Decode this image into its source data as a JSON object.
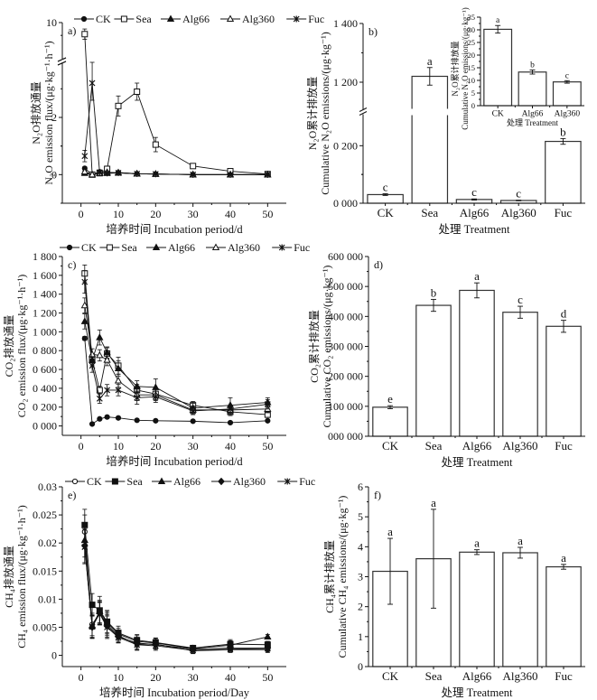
{
  "legend_series": [
    "CK",
    "Sea",
    "Alg66",
    "Alg360",
    "Fuc"
  ],
  "chart_data": [
    {
      "id": "a",
      "panel_label": "a)",
      "type": "line",
      "title": "",
      "xlabel": "培养时间 Incubation period/d",
      "ylabel_cn": "N₂O排放通量",
      "ylabel_en": "N₂O emission flux/(μg·kg⁻¹·h⁻¹)",
      "xlim": [
        -5,
        55
      ],
      "xticks": [
        0,
        10,
        20,
        30,
        40,
        50
      ],
      "ylim_lower": [
        -1,
        3.8
      ],
      "ylim_upper": [
        3.8,
        10
      ],
      "yticks": [
        0,
        2,
        10
      ],
      "axis_break": true,
      "legend_position": "top",
      "x": [
        1,
        3,
        5,
        7,
        10,
        15,
        20,
        30,
        40,
        50
      ],
      "series": [
        {
          "name": "CK",
          "marker": "filled-circle",
          "values": [
            0.22,
            0.0,
            0.1,
            0.05,
            0.07,
            0.03,
            0.02,
            0.0,
            0.0,
            0.0
          ],
          "errors": [
            0.05,
            0.02,
            0.03,
            0.02,
            0.02,
            0.01,
            0.01,
            0.01,
            0.01,
            0.01
          ]
        },
        {
          "name": "Sea",
          "marker": "open-square",
          "values": [
            8.2,
            0.0,
            0.05,
            0.2,
            2.4,
            2.9,
            1.05,
            0.3,
            0.12,
            0.02
          ],
          "errors": [
            0.8,
            0.03,
            0.03,
            0.1,
            0.35,
            0.3,
            0.25,
            0.05,
            0.03,
            0.01
          ]
        },
        {
          "name": "Alg66",
          "marker": "filled-triangle",
          "values": [
            0.05,
            0.0,
            0.05,
            0.05,
            0.06,
            0.03,
            0.02,
            0.0,
            0.0,
            0.0
          ],
          "errors": [
            0.02,
            0.01,
            0.02,
            0.02,
            0.02,
            0.01,
            0.01,
            0.01,
            0.01,
            0.01
          ]
        },
        {
          "name": "Alg360",
          "marker": "open-triangle",
          "values": [
            0.1,
            0.0,
            0.05,
            0.08,
            0.07,
            0.03,
            0.02,
            0.0,
            0.0,
            0.0
          ],
          "errors": [
            0.03,
            0.01,
            0.02,
            0.02,
            0.02,
            0.01,
            0.01,
            0.01,
            0.01,
            0.01
          ]
        },
        {
          "name": "Fuc",
          "marker": "star",
          "values": [
            0.65,
            3.2,
            0.08,
            0.05,
            0.06,
            0.03,
            0.02,
            0.0,
            0.0,
            0.0
          ],
          "errors": [
            0.2,
            0.6,
            0.03,
            0.02,
            0.02,
            0.01,
            0.01,
            0.01,
            0.01,
            0.01
          ]
        }
      ]
    },
    {
      "id": "b",
      "panel_label": "b)",
      "type": "bar",
      "xlabel": "处理 Treatment",
      "ylabel_cn": "N₂O累计排放量",
      "ylabel_en": "Cumulative N₂O emissions/(μg·kg⁻¹)",
      "categories": [
        "CK",
        "Sea",
        "Alg66",
        "Alg360",
        "Fuc"
      ],
      "values": [
        30,
        1220,
        13,
        9.5,
        215
      ],
      "errors": [
        3,
        30,
        2,
        1,
        10
      ],
      "letters": [
        "c",
        "a",
        "c",
        "c",
        "b"
      ],
      "axis_break": true,
      "ylim_lower": [
        0,
        300
      ],
      "ylim_upper": [
        1100,
        1400
      ],
      "ytick_labels": [
        "0 000",
        "0 200",
        "1 200",
        "1 400"
      ],
      "yticks": [
        0,
        200,
        1200,
        1400
      ],
      "inset": {
        "type": "bar",
        "xlabel": "处理 Treatment",
        "ylabel_cn": "N₂O累计排放量",
        "ylabel_en": "Cumulative N₂O emissions/(μg·kg⁻¹)",
        "categories": [
          "CK",
          "Alg66",
          "Alg360"
        ],
        "values": [
          30.2,
          13.3,
          9.4
        ],
        "errors": [
          1.5,
          0.8,
          0.5
        ],
        "letters": [
          "a",
          "b",
          "c"
        ],
        "ylim": [
          0,
          35
        ],
        "yticks": [
          0,
          5,
          10,
          15,
          20,
          25,
          30,
          35
        ]
      }
    },
    {
      "id": "c",
      "panel_label": "c)",
      "type": "line",
      "xlabel": "培养时间 Incubation period/d",
      "ylabel_cn": "CO₂排放通量",
      "ylabel_en": "CO₂ emission flux/(μg·kg⁻¹·h⁻¹)",
      "xlim": [
        -5,
        55
      ],
      "xticks": [
        0,
        10,
        20,
        30,
        40,
        50
      ],
      "ylim": [
        -100,
        1800
      ],
      "yticks": [
        0,
        200,
        400,
        600,
        800,
        1000,
        1200,
        1400,
        1600,
        1800
      ],
      "ytick_labels": [
        "0 000",
        "0 200",
        "0 400",
        "0 600",
        "0 800",
        "1 000",
        "1 200",
        "1 400",
        "1 600",
        "1 800"
      ],
      "legend_position": "top",
      "x": [
        1,
        3,
        5,
        7,
        10,
        15,
        20,
        30,
        40,
        50
      ],
      "series": [
        {
          "name": "CK",
          "marker": "filled-circle",
          "values": [
            930,
            20,
            75,
            95,
            85,
            60,
            55,
            50,
            35,
            55
          ],
          "errors": [
            20,
            5,
            10,
            10,
            15,
            10,
            8,
            8,
            8,
            8
          ]
        },
        {
          "name": "Sea",
          "marker": "open-square",
          "values": [
            1620,
            700,
            380,
            770,
            640,
            380,
            340,
            220,
            150,
            120
          ],
          "errors": [
            90,
            60,
            40,
            60,
            90,
            60,
            60,
            40,
            40,
            30
          ]
        },
        {
          "name": "Alg66",
          "marker": "filled-triangle",
          "values": [
            1110,
            700,
            940,
            780,
            610,
            420,
            410,
            190,
            220,
            250
          ],
          "errors": [
            80,
            60,
            80,
            60,
            80,
            60,
            90,
            50,
            80,
            50
          ]
        },
        {
          "name": "Alg360",
          "marker": "open-triangle",
          "values": [
            1280,
            760,
            750,
            700,
            480,
            330,
            330,
            170,
            170,
            180
          ],
          "errors": [
            80,
            60,
            60,
            60,
            70,
            60,
            60,
            40,
            40,
            40
          ]
        },
        {
          "name": "Fuc",
          "marker": "star",
          "values": [
            1530,
            640,
            290,
            380,
            380,
            300,
            310,
            160,
            180,
            230
          ],
          "errors": [
            120,
            70,
            50,
            60,
            60,
            70,
            60,
            40,
            40,
            50
          ]
        }
      ]
    },
    {
      "id": "d",
      "panel_label": "d)",
      "type": "bar",
      "xlabel": "处理 Treatment",
      "ylabel_cn": "CO₂累计排放量",
      "ylabel_en": "Cumulative CO₂ emissions/(μg·kg⁻¹)",
      "categories": [
        "CK",
        "Sea",
        "Alg66",
        "Alg360",
        "Fuc"
      ],
      "values": [
        97000,
        437000,
        487000,
        414000,
        367000
      ],
      "errors": [
        5000,
        20000,
        25000,
        20000,
        20000
      ],
      "letters": [
        "e",
        "b",
        "a",
        "c",
        "d"
      ],
      "ylim": [
        0,
        600000
      ],
      "yticks": [
        0,
        100000,
        200000,
        300000,
        400000,
        500000,
        600000
      ],
      "ytick_labels": [
        "000 000",
        "100 000",
        "200 000",
        "300 000",
        "400 000",
        "500 000",
        "600 000"
      ]
    },
    {
      "id": "e",
      "panel_label": "e)",
      "type": "line",
      "xlabel": "培养时间 Incubation period/Day",
      "ylabel_cn": "CH₄排放通量",
      "ylabel_en": "CH₄ emission flux/(μg·kg⁻¹·h⁻¹)",
      "xlim": [
        -5,
        55
      ],
      "xticks": [
        0,
        10,
        20,
        30,
        40,
        50
      ],
      "ylim": [
        -0.002,
        0.03
      ],
      "yticks": [
        0,
        0.005,
        0.01,
        0.015,
        0.02,
        0.025,
        0.03
      ],
      "ytick_labels": [
        "0",
        "0.005",
        "0.01",
        "0.015",
        "0.02",
        "0.025",
        "0.03"
      ],
      "legend_position": "top",
      "x": [
        1,
        3,
        5,
        7,
        10,
        15,
        20,
        30,
        40,
        50
      ],
      "series": [
        {
          "name": "CK",
          "marker": "open-circle",
          "values": [
            0.022,
            0.0055,
            0.0075,
            0.0055,
            0.0035,
            0.002,
            0.002,
            0.0008,
            0.001,
            0.001
          ],
          "errors": [
            0.003,
            0.002,
            0.002,
            0.002,
            0.001,
            0.001,
            0.0008,
            0.0005,
            0.0005,
            0.0005
          ]
        },
        {
          "name": "Sea",
          "marker": "filled-square",
          "values": [
            0.0232,
            0.009,
            0.008,
            0.006,
            0.004,
            0.0027,
            0.0023,
            0.0013,
            0.002,
            0.0019
          ],
          "errors": [
            0.0028,
            0.002,
            0.0025,
            0.002,
            0.0012,
            0.001,
            0.0008,
            0.0005,
            0.0008,
            0.0006
          ]
        },
        {
          "name": "Alg66",
          "marker": "filled-triangle",
          "values": [
            0.0205,
            0.0052,
            0.0078,
            0.0058,
            0.0038,
            0.0025,
            0.0022,
            0.0012,
            0.0018,
            0.0033
          ],
          "errors": [
            0.003,
            0.002,
            0.002,
            0.002,
            0.001,
            0.001,
            0.0008,
            0.0005,
            0.0008,
            0.0004
          ]
        },
        {
          "name": "Alg360",
          "marker": "filled-diamond",
          "values": [
            0.0195,
            0.005,
            0.0076,
            0.0052,
            0.0033,
            0.0022,
            0.0019,
            0.0011,
            0.0013,
            0.0013
          ],
          "errors": [
            0.003,
            0.002,
            0.002,
            0.002,
            0.001,
            0.001,
            0.0008,
            0.0005,
            0.0005,
            0.0005
          ]
        },
        {
          "name": "Fuc",
          "marker": "star",
          "values": [
            0.0193,
            0.0051,
            0.0074,
            0.005,
            0.0032,
            0.0019,
            0.0017,
            0.0009,
            0.0011,
            0.0012
          ],
          "errors": [
            0.003,
            0.002,
            0.002,
            0.002,
            0.001,
            0.001,
            0.0008,
            0.0005,
            0.0005,
            0.0005
          ]
        }
      ]
    },
    {
      "id": "f",
      "panel_label": "f)",
      "type": "bar",
      "xlabel": "处理 Treatment",
      "ylabel_cn": "CH₄累计排放量",
      "ylabel_en": "Cumulative CH₄ emissions/(μg·kg⁻¹)",
      "categories": [
        "CK",
        "Sea",
        "Alg66",
        "Alg360",
        "Fuc"
      ],
      "values": [
        3.18,
        3.6,
        3.82,
        3.8,
        3.33
      ],
      "errors": [
        1.1,
        1.65,
        0.08,
        0.18,
        0.08
      ],
      "letters": [
        "a",
        "a",
        "a",
        "a",
        "a"
      ],
      "ylim": [
        0,
        6
      ],
      "yticks": [
        0,
        1,
        2,
        3,
        4,
        5,
        6
      ],
      "ytick_labels": [
        "0",
        "1",
        "2",
        "3",
        "4",
        "5",
        "6"
      ]
    }
  ]
}
